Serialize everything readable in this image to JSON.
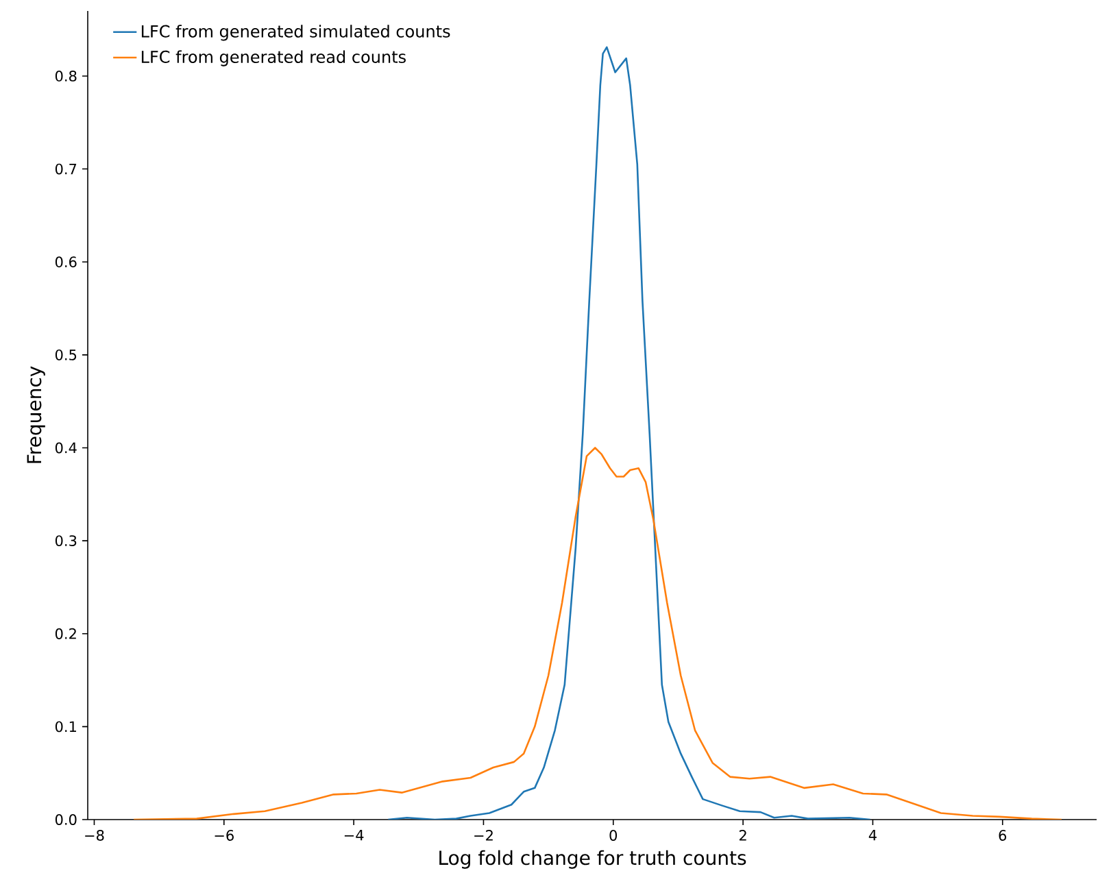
{
  "chart_data": {
    "type": "line",
    "xlabel": "Log fold change for truth counts",
    "ylabel": "Frequency",
    "xlim": [
      -8.1,
      7.45
    ],
    "ylim": [
      0,
      0.87
    ],
    "xticks": [
      {
        "value": -8,
        "label": "−8"
      },
      {
        "value": -6,
        "label": "−6"
      },
      {
        "value": -4,
        "label": "−4"
      },
      {
        "value": -2,
        "label": "−2"
      },
      0,
      2,
      4,
      6
    ],
    "yticks": [
      {
        "value": 0,
        "label": "0.0"
      },
      {
        "value": 0.1,
        "label": "0.1"
      },
      {
        "value": 0.2,
        "label": "0.2"
      },
      {
        "value": 0.3,
        "label": "0.3"
      },
      {
        "value": 0.4,
        "label": "0.4"
      },
      {
        "value": 0.5,
        "label": "0.5"
      },
      {
        "value": 0.6,
        "label": "0.6"
      },
      {
        "value": 0.7,
        "label": "0.7"
      },
      {
        "value": 0.8,
        "label": "0.8"
      }
    ],
    "grid": false,
    "legend": "top left",
    "marker": "none",
    "line_style": "solid",
    "series": [
      {
        "name": "LFC from generated simulated counts",
        "color": "#1f77b4",
        "x": [
          -3.47,
          -3.18,
          -2.75,
          -2.42,
          -2.2,
          -1.91,
          -1.57,
          -1.38,
          -1.21,
          -1.07,
          -0.9,
          -0.75,
          -0.58,
          -0.47,
          -0.37,
          -0.26,
          -0.2,
          -0.16,
          -0.1,
          0.03,
          0.2,
          0.26,
          0.37,
          0.45,
          0.56,
          0.75,
          0.85,
          1.04,
          1.21,
          1.38,
          1.68,
          1.95,
          2.27,
          2.48,
          2.75,
          3.0,
          3.64,
          3.96
        ],
        "values": [
          0,
          0.002,
          0,
          0.001,
          0.004,
          0.007,
          0.016,
          0.03,
          0.034,
          0.056,
          0.096,
          0.145,
          0.292,
          0.415,
          0.558,
          0.705,
          0.79,
          0.824,
          0.831,
          0.804,
          0.819,
          0.79,
          0.705,
          0.558,
          0.415,
          0.145,
          0.105,
          0.071,
          0.046,
          0.022,
          0.015,
          0.009,
          0.008,
          0.002,
          0.004,
          0.001,
          0.002,
          0
        ]
      },
      {
        "name": "LFC from generated read counts",
        "color": "#ff7f0e",
        "x": [
          -7.39,
          -6.42,
          -5.85,
          -5.37,
          -4.8,
          -4.31,
          -3.96,
          -3.6,
          -3.26,
          -2.63,
          -2.2,
          -1.85,
          -1.53,
          -1.38,
          -1.21,
          -1.0,
          -0.79,
          -0.58,
          -0.41,
          -0.28,
          -0.18,
          -0.05,
          0.05,
          0.16,
          0.26,
          0.39,
          0.5,
          0.62,
          0.83,
          1.04,
          1.26,
          1.53,
          1.8,
          2.1,
          2.42,
          2.94,
          3.39,
          3.85,
          4.21,
          4.55,
          5.05,
          5.54,
          5.96,
          6.45,
          6.91
        ],
        "values": [
          0,
          0.001,
          0.006,
          0.009,
          0.018,
          0.027,
          0.028,
          0.032,
          0.029,
          0.041,
          0.045,
          0.056,
          0.062,
          0.071,
          0.1,
          0.155,
          0.233,
          0.326,
          0.391,
          0.4,
          0.393,
          0.378,
          0.369,
          0.369,
          0.376,
          0.378,
          0.363,
          0.322,
          0.233,
          0.155,
          0.096,
          0.061,
          0.046,
          0.044,
          0.046,
          0.034,
          0.038,
          0.028,
          0.027,
          0.019,
          0.007,
          0.004,
          0.003,
          0.001,
          0
        ]
      }
    ]
  }
}
